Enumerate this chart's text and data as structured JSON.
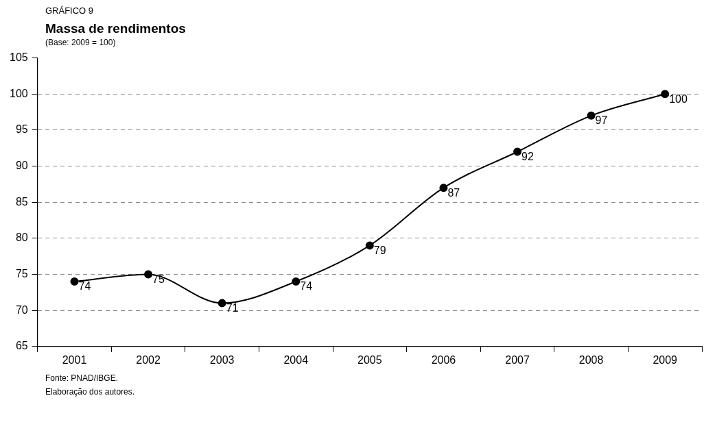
{
  "chart_data": {
    "type": "line",
    "title": "Massa de rendimentos",
    "subtitle": "(Base: 2009 = 100)",
    "annotations": [
      "GRÁFICO 9",
      "Fonte: PNAD/IBGE.",
      "Elaboração dos autores."
    ],
    "categories": [
      "2001",
      "2002",
      "2003",
      "2004",
      "2005",
      "2006",
      "2007",
      "2008",
      "2009"
    ],
    "series": [
      {
        "color": "#000000",
        "values": [
          74,
          75,
          71,
          74,
          79,
          87,
          92,
          97,
          100
        ]
      }
    ],
    "ylim": [
      65,
      105
    ],
    "yticks": [
      65,
      70,
      75,
      80,
      85,
      90,
      95,
      100,
      105
    ],
    "grid": "y",
    "legend": false,
    "marker": "circle",
    "line_style": "solid",
    "data_labels": true
  }
}
